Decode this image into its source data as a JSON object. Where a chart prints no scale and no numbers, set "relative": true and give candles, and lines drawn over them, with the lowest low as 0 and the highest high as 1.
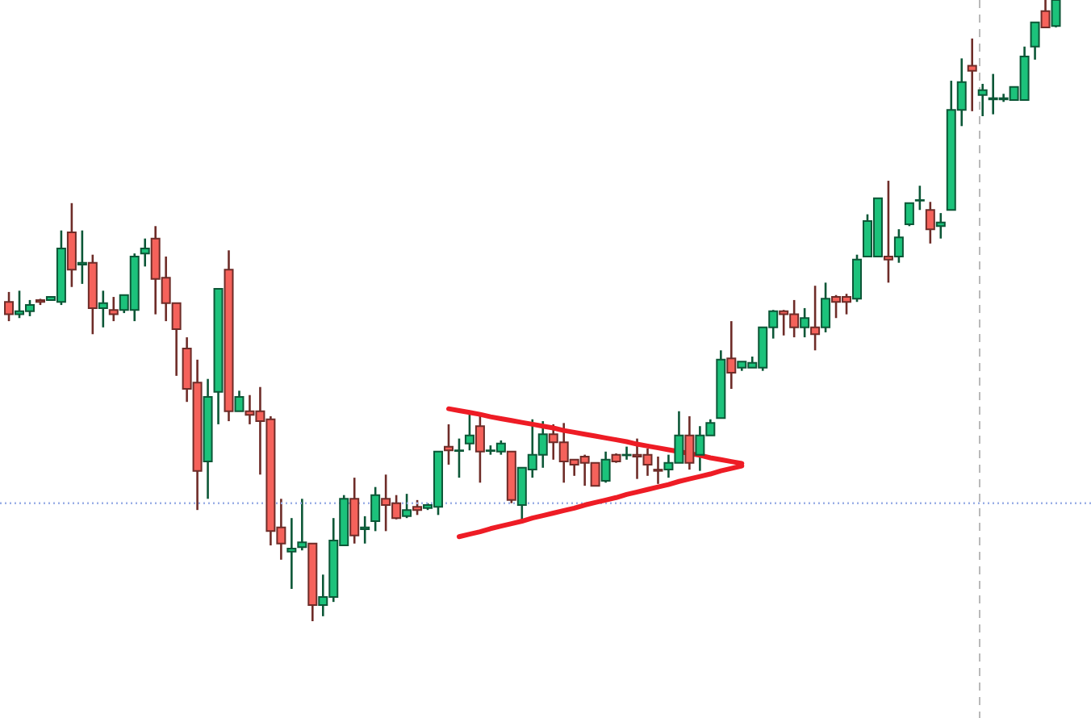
{
  "chart_data": {
    "type": "candlestick",
    "relative": true,
    "categories": [
      null,
      null,
      null,
      null,
      null,
      null,
      null,
      null,
      null,
      null,
      null,
      null,
      null,
      null,
      null,
      null,
      null,
      null,
      null,
      null,
      null,
      null,
      null,
      null,
      null,
      null,
      null,
      null,
      null,
      null,
      null,
      null,
      null,
      null,
      null,
      null,
      null,
      null,
      null,
      null,
      null,
      null,
      null,
      null,
      null,
      null,
      null,
      null,
      null,
      null,
      null,
      null,
      null,
      null,
      null,
      null,
      null,
      null,
      null,
      null,
      null,
      null,
      null,
      null,
      null,
      null,
      null,
      null,
      null,
      null,
      null,
      null,
      null,
      null,
      null,
      null,
      null,
      null,
      null,
      null,
      null,
      null,
      null,
      null,
      null,
      null,
      null,
      null,
      null,
      null,
      null,
      null,
      null,
      null,
      null,
      null,
      null,
      null,
      null,
      null,
      null
    ],
    "ohlc": [
      [
        0.514,
        0.53,
        0.483,
        0.494
      ],
      [
        0.494,
        0.532,
        0.488,
        0.499
      ],
      [
        0.499,
        0.517,
        0.491,
        0.509
      ],
      [
        0.517,
        0.519,
        0.509,
        0.514
      ],
      [
        0.517,
        0.522,
        0.517,
        0.522
      ],
      [
        0.514,
        0.629,
        0.509,
        0.6
      ],
      [
        0.626,
        0.673,
        0.538,
        0.566
      ],
      [
        0.574,
        0.629,
        0.543,
        0.577
      ],
      [
        0.577,
        0.59,
        0.462,
        0.504
      ],
      [
        0.504,
        0.532,
        0.473,
        0.512
      ],
      [
        0.501,
        0.522,
        0.483,
        0.494
      ],
      [
        0.501,
        0.525,
        0.496,
        0.525
      ],
      [
        0.501,
        0.592,
        0.483,
        0.587
      ],
      [
        0.592,
        0.616,
        0.571,
        0.6
      ],
      [
        0.616,
        0.636,
        0.494,
        0.551
      ],
      [
        0.553,
        0.587,
        0.483,
        0.512
      ],
      [
        0.512,
        0.512,
        0.395,
        0.47
      ],
      [
        0.439,
        0.457,
        0.353,
        0.374
      ],
      [
        0.384,
        0.421,
        0.179,
        0.242
      ],
      [
        0.257,
        0.39,
        0.197,
        0.361
      ],
      [
        0.369,
        0.535,
        0.317,
        0.535
      ],
      [
        0.566,
        0.597,
        0.322,
        0.338
      ],
      [
        0.338,
        0.371,
        0.338,
        0.361
      ],
      [
        0.338,
        0.364,
        0.317,
        0.332
      ],
      [
        0.338,
        0.377,
        0.236,
        0.322
      ],
      [
        0.325,
        0.33,
        0.122,
        0.145
      ],
      [
        0.151,
        0.197,
        0.099,
        0.125
      ],
      [
        0.112,
        0.166,
        0.052,
        0.117
      ],
      [
        0.119,
        0.197,
        0.114,
        0.127
      ],
      [
        0.125,
        0.125,
        0,
        0.026
      ],
      [
        0.026,
        0.075,
        0.008,
        0.039
      ],
      [
        0.039,
        0.166,
        0.031,
        0.13
      ],
      [
        0.122,
        0.203,
        0.122,
        0.197
      ],
      [
        0.197,
        0.231,
        0.125,
        0.138
      ],
      [
        0.148,
        0.169,
        0.125,
        0.151
      ],
      [
        0.161,
        0.216,
        0.145,
        0.203
      ],
      [
        0.197,
        0.236,
        0.145,
        0.187
      ],
      [
        0.19,
        0.203,
        0.164,
        0.166
      ],
      [
        0.169,
        0.205,
        0.166,
        0.179
      ],
      [
        0.184,
        0.195,
        0.171,
        0.179
      ],
      [
        0.182,
        0.19,
        0.179,
        0.187
      ],
      [
        0.184,
        0.273,
        0.171,
        0.273
      ],
      [
        0.281,
        0.317,
        0.252,
        0.275
      ],
      [
        0.274,
        0.294,
        0.231,
        0.275
      ],
      [
        0.286,
        0.338,
        0.275,
        0.299
      ],
      [
        0.314,
        0.33,
        0.223,
        0.273
      ],
      [
        0.274,
        0.283,
        0.268,
        0.275
      ],
      [
        0.273,
        0.291,
        0.268,
        0.286
      ],
      [
        0.273,
        0.273,
        0.19,
        0.195
      ],
      [
        0.187,
        0.247,
        0.164,
        0.247
      ],
      [
        0.244,
        0.325,
        0.231,
        0.268
      ],
      [
        0.268,
        0.322,
        0.247,
        0.301
      ],
      [
        0.301,
        0.317,
        0.26,
        0.288
      ],
      [
        0.288,
        0.319,
        0.223,
        0.257
      ],
      [
        0.26,
        0.26,
        0.234,
        0.252
      ],
      [
        0.265,
        0.268,
        0.218,
        0.255
      ],
      [
        0.255,
        0.255,
        0.218,
        0.218
      ],
      [
        0.226,
        0.273,
        0.223,
        0.26
      ],
      [
        0.268,
        0.27,
        0.255,
        0.257
      ],
      [
        0.267,
        0.281,
        0.26,
        0.268
      ],
      [
        0.268,
        0.294,
        0.229,
        0.265
      ],
      [
        0.268,
        0.278,
        0.234,
        0.252
      ],
      [
        0.244,
        0.265,
        0.221,
        0.242
      ],
      [
        0.244,
        0.268,
        0.231,
        0.255
      ],
      [
        0.255,
        0.338,
        0.255,
        0.299
      ],
      [
        0.299,
        0.33,
        0.244,
        0.255
      ],
      [
        0.268,
        0.314,
        0.242,
        0.299
      ],
      [
        0.299,
        0.325,
        0.299,
        0.319
      ],
      [
        0.327,
        0.436,
        0.327,
        0.421
      ],
      [
        0.423,
        0.483,
        0.374,
        0.4
      ],
      [
        0.408,
        0.418,
        0.403,
        0.418
      ],
      [
        0.408,
        0.426,
        0.408,
        0.416
      ],
      [
        0.408,
        0.473,
        0.403,
        0.473
      ],
      [
        0.473,
        0.501,
        0.455,
        0.499
      ],
      [
        0.499,
        0.501,
        0.46,
        0.494
      ],
      [
        0.494,
        0.517,
        0.457,
        0.473
      ],
      [
        0.473,
        0.504,
        0.457,
        0.488
      ],
      [
        0.473,
        0.54,
        0.436,
        0.462
      ],
      [
        0.473,
        0.545,
        0.465,
        0.519
      ],
      [
        0.522,
        0.525,
        0.488,
        0.514
      ],
      [
        0.522,
        0.527,
        0.494,
        0.514
      ],
      [
        0.519,
        0.59,
        0.514,
        0.582
      ],
      [
        0.587,
        0.655,
        0.587,
        0.644
      ],
      [
        0.587,
        0.681,
        0.587,
        0.681
      ],
      [
        0.587,
        0.709,
        0.545,
        0.582
      ],
      [
        0.587,
        0.631,
        0.577,
        0.618
      ],
      [
        0.639,
        0.673,
        0.636,
        0.673
      ],
      [
        0.677,
        0.701,
        0.662,
        0.678
      ],
      [
        0.662,
        0.675,
        0.608,
        0.631
      ],
      [
        0.636,
        0.657,
        0.616,
        0.642
      ],
      [
        0.662,
        0.87,
        0.662,
        0.823
      ],
      [
        0.823,
        0.906,
        0.797,
        0.868
      ],
      [
        0.894,
        0.938,
        0.821,
        0.886
      ],
      [
        0.847,
        0.865,
        0.813,
        0.855
      ],
      [
        0.84,
        0.881,
        0.816,
        0.842
      ],
      [
        0.84,
        0.849,
        0.836,
        0.842
      ],
      [
        0.839,
        0.86,
        0.839,
        0.86
      ],
      [
        0.839,
        0.925,
        0.839,
        0.909
      ],
      [
        0.925,
        0.964,
        0.904,
        0.964
      ],
      [
        0.982,
        1,
        0.956,
        0.956
      ],
      [
        0.958,
        1,
        0.956,
        1
      ]
    ],
    "colors": [
      "#f5625b",
      "#1cc27b",
      "#1cc27b",
      "#f5625b",
      "#1cc27b",
      "#1cc27b",
      "#f5625b",
      "#1cc27b",
      "#f5625b",
      "#1cc27b",
      "#f5625b",
      "#1cc27b",
      "#1cc27b",
      "#1cc27b",
      "#f5625b",
      "#f5625b",
      "#f5625b",
      "#f5625b",
      "#f5625b",
      "#1cc27b",
      "#1cc27b",
      "#f5625b",
      "#1cc27b",
      "#f5625b",
      "#f5625b",
      "#f5625b",
      "#f5625b",
      "#1cc27b",
      "#1cc27b",
      "#f5625b",
      "#1cc27b",
      "#1cc27b",
      "#1cc27b",
      "#f5625b",
      "#1cc27b",
      "#1cc27b",
      "#f5625b",
      "#f5625b",
      "#1cc27b",
      "#f5625b",
      "#1cc27b",
      "#1cc27b",
      "#f5625b",
      "#1cc27b",
      "#1cc27b",
      "#f5625b",
      "#1cc27b",
      "#1cc27b",
      "#f5625b",
      "#1cc27b",
      "#1cc27b",
      "#1cc27b",
      "#f5625b",
      "#f5625b",
      "#f5625b",
      "#f5625b",
      "#f5625b",
      "#1cc27b",
      "#f5625b",
      "#1cc27b",
      "#f5625b",
      "#f5625b",
      "#f5625b",
      "#1cc27b",
      "#1cc27b",
      "#f5625b",
      "#1cc27b",
      "#1cc27b",
      "#1cc27b",
      "#f5625b",
      "#1cc27b",
      "#1cc27b",
      "#1cc27b",
      "#1cc27b",
      "#f5625b",
      "#f5625b",
      "#1cc27b",
      "#f5625b",
      "#1cc27b",
      "#f5625b",
      "#f5625b",
      "#1cc27b",
      "#1cc27b",
      "#1cc27b",
      "#f5625b",
      "#1cc27b",
      "#1cc27b",
      "#1cc27b",
      "#f5625b",
      "#1cc27b",
      "#1cc27b",
      "#1cc27b",
      "#f5625b",
      "#1cc27b",
      "#1cc27b",
      "#1cc27b",
      "#1cc27b",
      "#1cc27b",
      "#1cc27b",
      "#f5625b",
      "#1cc27b"
    ],
    "series": [
      {
        "type": "line",
        "color": "#ee1c25",
        "values": [
          null,
          null,
          null,
          null,
          null,
          null,
          null,
          null,
          null,
          null,
          null,
          null,
          null,
          null,
          null,
          null,
          null,
          null,
          null,
          null,
          null,
          null,
          null,
          null,
          null,
          null,
          null,
          null,
          null,
          null,
          null,
          null,
          null,
          null,
          null,
          null,
          null,
          null,
          null,
          null,
          null,
          null,
          0.342,
          0.339,
          0.336,
          0.333,
          0.329,
          0.326,
          0.323,
          0.32,
          0.317,
          0.314,
          0.311,
          0.307,
          0.304,
          0.301,
          0.298,
          0.295,
          0.292,
          0.289,
          0.285,
          0.282,
          0.279,
          0.276,
          0.273,
          0.27,
          0.267,
          0.263,
          0.26,
          0.257,
          0.254,
          null,
          null,
          null,
          null,
          null,
          null,
          null,
          null,
          null,
          null,
          null,
          null,
          null,
          null,
          null,
          null,
          null,
          null,
          null,
          null,
          null,
          null,
          null,
          null,
          null,
          null,
          null,
          null,
          null,
          null
        ]
      },
      {
        "type": "line",
        "color": "#ee1c25",
        "values": [
          null,
          null,
          null,
          null,
          null,
          null,
          null,
          null,
          null,
          null,
          null,
          null,
          null,
          null,
          null,
          null,
          null,
          null,
          null,
          null,
          null,
          null,
          null,
          null,
          null,
          null,
          null,
          null,
          null,
          null,
          null,
          null,
          null,
          null,
          null,
          null,
          null,
          null,
          null,
          null,
          null,
          null,
          null,
          0.136,
          0.14,
          0.144,
          0.149,
          0.153,
          0.157,
          0.161,
          0.166,
          0.17,
          0.174,
          0.178,
          0.182,
          0.187,
          0.191,
          0.195,
          0.199,
          0.204,
          0.208,
          0.212,
          0.216,
          0.22,
          0.225,
          0.229,
          0.233,
          0.237,
          0.242,
          0.246,
          0.25,
          null,
          null,
          null,
          null,
          null,
          null,
          null,
          null,
          null,
          null,
          null,
          null,
          null,
          null,
          null,
          null,
          null,
          null,
          null,
          null,
          null,
          null,
          null,
          null,
          null,
          null,
          null,
          null,
          null,
          null
        ]
      }
    ],
    "ref_lines": [
      {
        "axis": "y",
        "value": 0.19,
        "color": "#9aaee6",
        "line_style": "dotted"
      }
    ]
  }
}
